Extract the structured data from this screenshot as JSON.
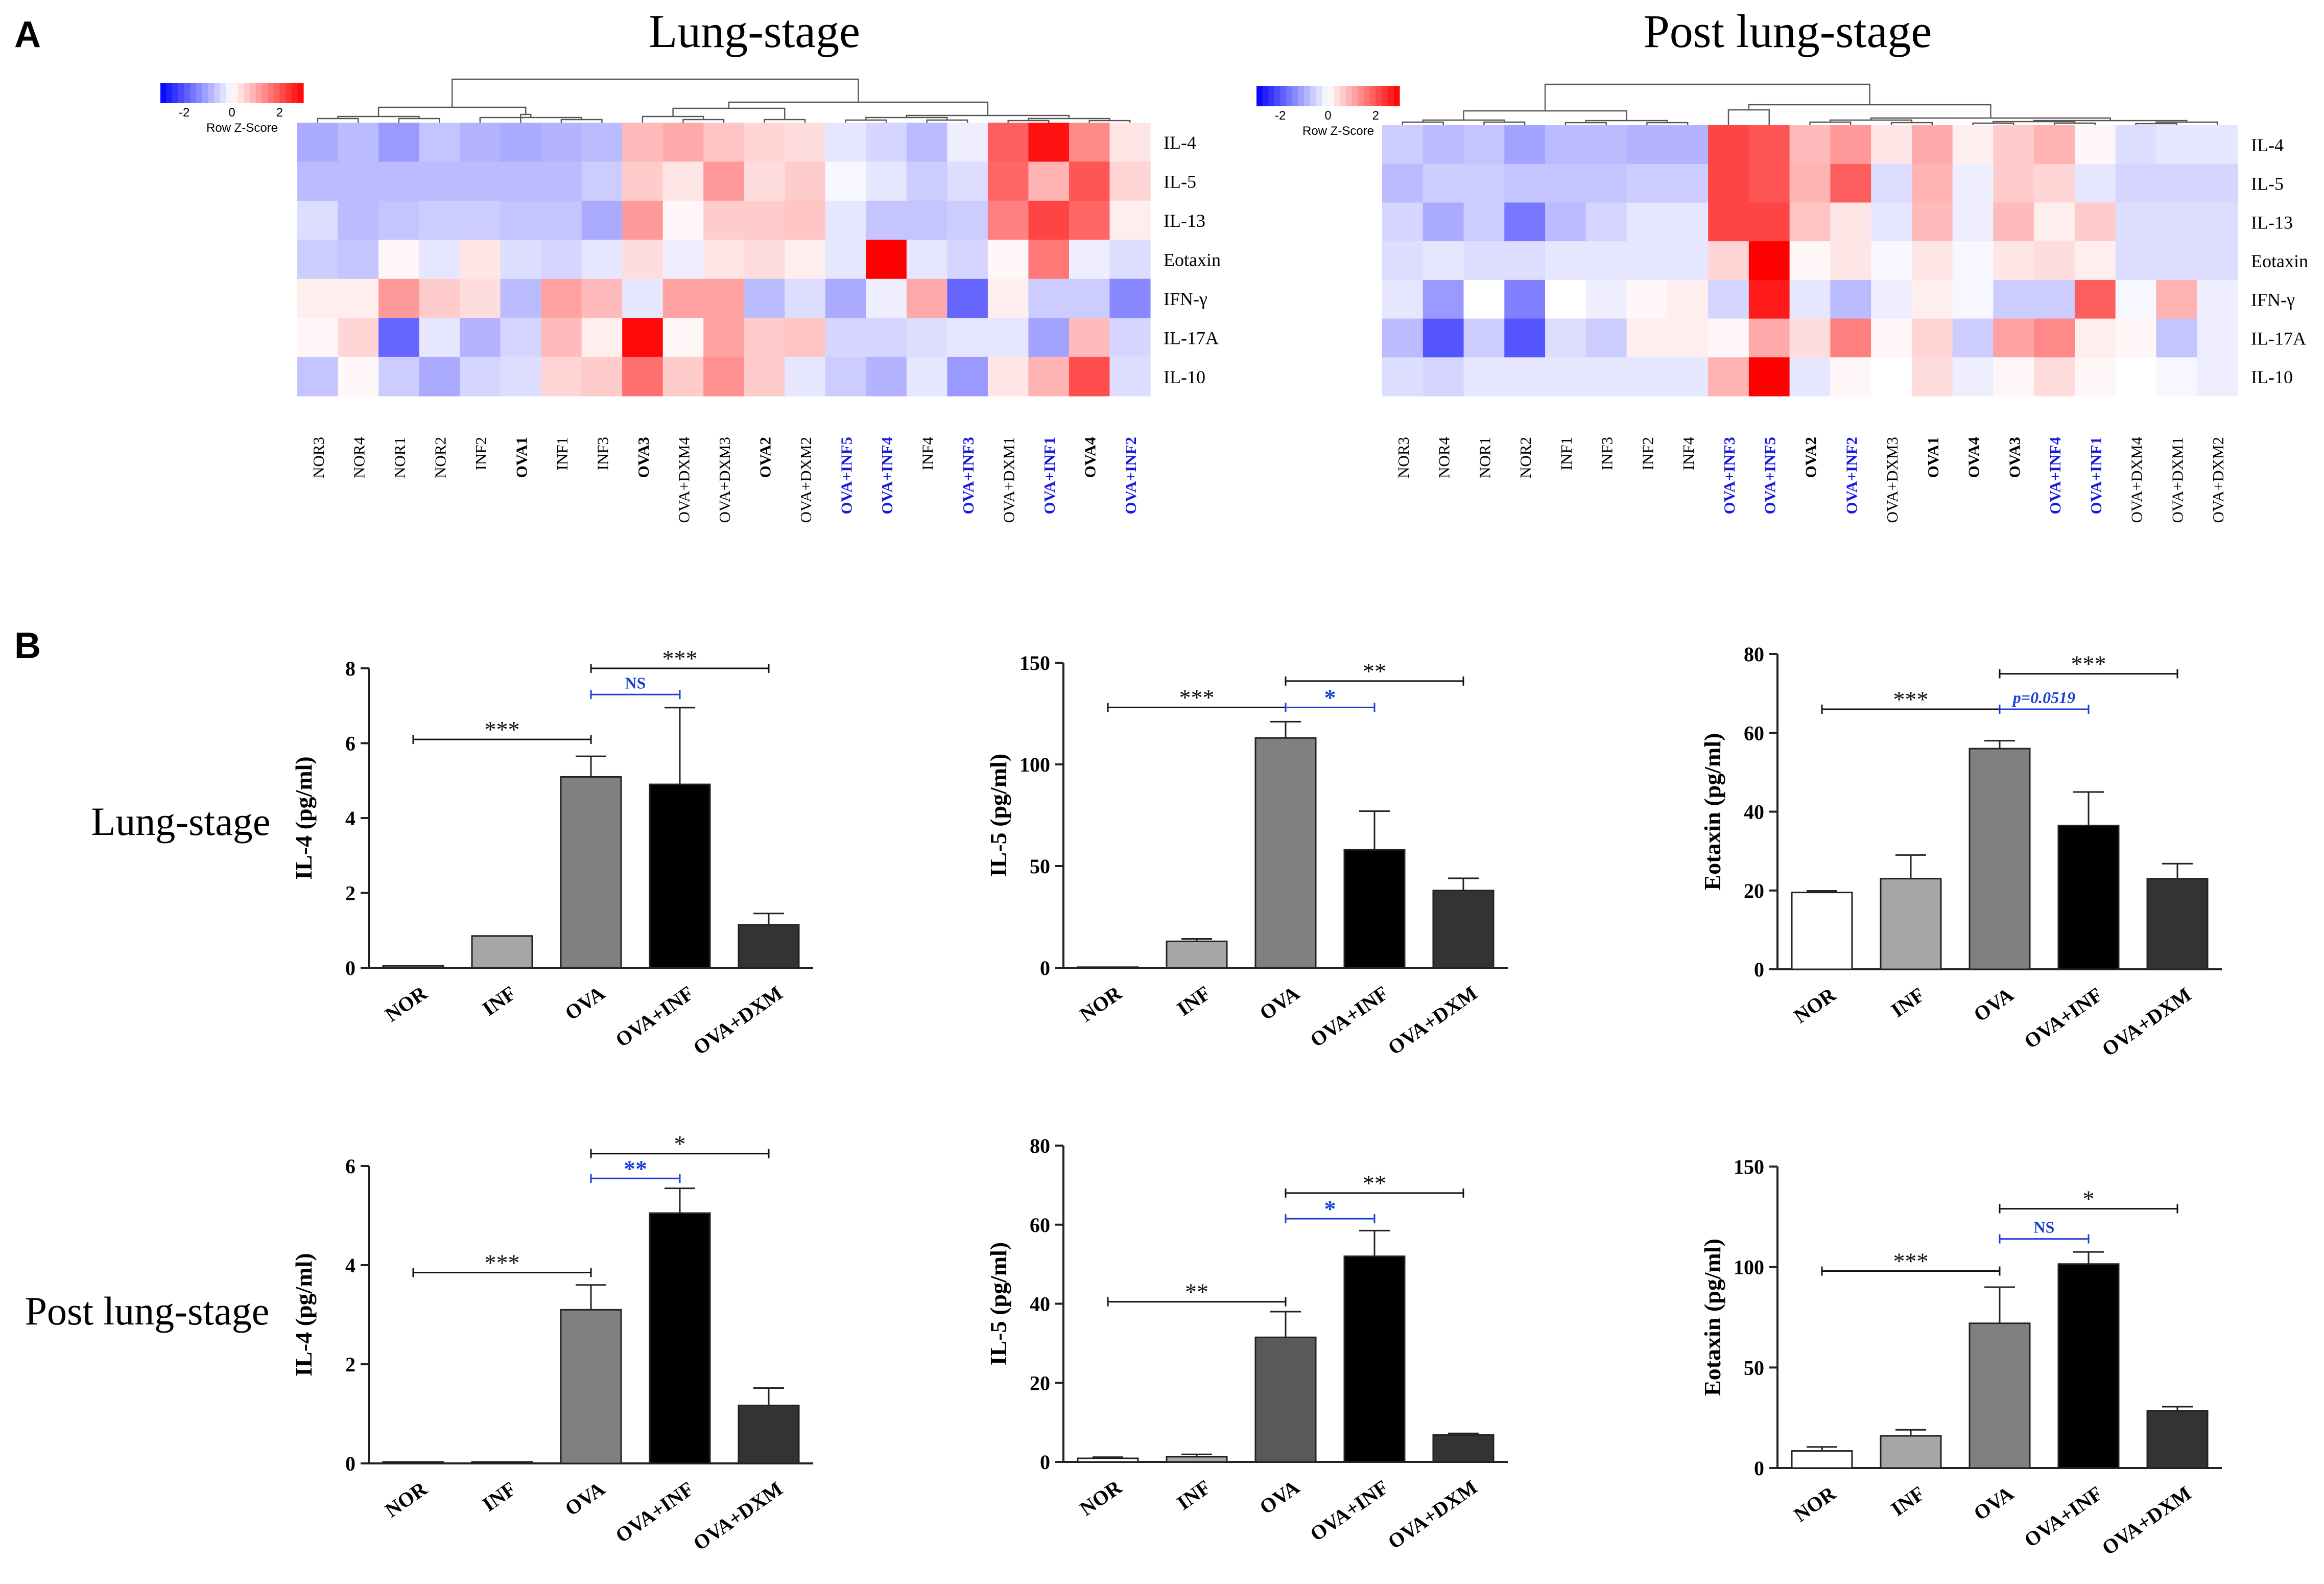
{
  "chart_data": [
    {
      "type": "heatmap",
      "panel": "A",
      "title": "Lung-stage",
      "colorbar": {
        "label": "Row Z-Score",
        "ticks": [
          "-2",
          "0",
          "2"
        ],
        "range": [
          -3,
          3
        ],
        "low_color": "#0000ff",
        "mid_color": "#ffffff",
        "high_color": "#ff0000"
      },
      "rows": [
        "IL-4",
        "IL-5",
        "IL-13",
        "Eotaxin",
        "IFN-γ",
        "IL-17A",
        "IL-10"
      ],
      "columns": [
        {
          "label": "NOR3",
          "bold": false,
          "color": "#000000"
        },
        {
          "label": "NOR4",
          "bold": false,
          "color": "#000000"
        },
        {
          "label": "NOR1",
          "bold": false,
          "color": "#000000"
        },
        {
          "label": "NOR2",
          "bold": false,
          "color": "#000000"
        },
        {
          "label": "INF2",
          "bold": false,
          "color": "#000000"
        },
        {
          "label": "OVA1",
          "bold": true,
          "color": "#000000"
        },
        {
          "label": "INF1",
          "bold": false,
          "color": "#000000"
        },
        {
          "label": "INF3",
          "bold": false,
          "color": "#000000"
        },
        {
          "label": "OVA3",
          "bold": true,
          "color": "#000000"
        },
        {
          "label": "OVA+DXM4",
          "bold": false,
          "color": "#000000"
        },
        {
          "label": "OVA+DXM3",
          "bold": false,
          "color": "#000000"
        },
        {
          "label": "OVA2",
          "bold": true,
          "color": "#000000"
        },
        {
          "label": "OVA+DXM2",
          "bold": false,
          "color": "#000000"
        },
        {
          "label": "OVA+INF5",
          "bold": true,
          "color": "#1a1adc"
        },
        {
          "label": "OVA+INF4",
          "bold": true,
          "color": "#1a1adc"
        },
        {
          "label": "INF4",
          "bold": false,
          "color": "#000000"
        },
        {
          "label": "OVA+INF3",
          "bold": true,
          "color": "#1a1adc"
        },
        {
          "label": "OVA+DXM1",
          "bold": false,
          "color": "#000000"
        },
        {
          "label": "OVA+INF1",
          "bold": true,
          "color": "#1a1adc"
        },
        {
          "label": "OVA4",
          "bold": true,
          "color": "#000000"
        },
        {
          "label": "OVA+INF2",
          "bold": true,
          "color": "#1a1adc"
        }
      ],
      "values": [
        [
          -1.0,
          -0.8,
          -1.2,
          -0.7,
          -0.9,
          -1.0,
          -0.9,
          -0.8,
          0.8,
          1.0,
          0.7,
          0.5,
          0.4,
          -0.3,
          -0.5,
          -0.8,
          -0.2,
          1.9,
          2.8,
          1.4,
          0.3
        ],
        [
          -0.8,
          -0.8,
          -0.8,
          -0.8,
          -0.8,
          -0.8,
          -0.8,
          -0.6,
          0.6,
          0.3,
          1.2,
          0.4,
          0.6,
          -0.1,
          -0.3,
          -0.6,
          -0.4,
          1.8,
          0.9,
          2.0,
          0.5
        ],
        [
          -0.4,
          -0.8,
          -0.7,
          -0.6,
          -0.6,
          -0.7,
          -0.7,
          -1.0,
          1.2,
          0.1,
          0.6,
          0.6,
          0.7,
          -0.3,
          -0.7,
          -0.7,
          -0.6,
          1.5,
          2.2,
          1.8,
          0.2
        ],
        [
          -0.6,
          -0.7,
          0.1,
          -0.3,
          0.3,
          -0.4,
          -0.5,
          -0.3,
          0.4,
          -0.2,
          0.3,
          0.4,
          0.2,
          -0.3,
          3.0,
          -0.3,
          -0.5,
          0.1,
          1.6,
          -0.2,
          -0.4
        ],
        [
          0.2,
          0.2,
          1.2,
          0.6,
          0.4,
          -0.8,
          1.1,
          0.8,
          -0.3,
          1.1,
          1.1,
          -0.8,
          -0.4,
          -1.0,
          -0.2,
          1.0,
          -1.8,
          0.2,
          -0.6,
          -0.6,
          -1.4
        ],
        [
          0.1,
          0.5,
          -1.8,
          -0.3,
          -0.9,
          -0.5,
          0.8,
          0.2,
          2.9,
          0.1,
          1.1,
          0.6,
          0.7,
          -0.5,
          -0.5,
          -0.4,
          -0.3,
          -0.3,
          -1.1,
          0.8,
          -0.5
        ],
        [
          -0.7,
          0.1,
          -0.6,
          -1.0,
          -0.5,
          -0.4,
          0.5,
          0.6,
          1.7,
          0.6,
          1.3,
          0.6,
          -0.3,
          -0.6,
          -0.9,
          -0.3,
          -1.2,
          0.3,
          0.9,
          2.1,
          -0.4
        ]
      ]
    },
    {
      "type": "heatmap",
      "panel": "A",
      "title": "Post lung-stage",
      "colorbar": {
        "label": "Row Z-Score",
        "ticks": [
          "-2",
          "0",
          "2"
        ],
        "range": [
          -3,
          3
        ],
        "low_color": "#0000ff",
        "mid_color": "#ffffff",
        "high_color": "#ff0000"
      },
      "rows": [
        "IL-4",
        "IL-5",
        "IL-13",
        "Eotaxin",
        "IFN-γ",
        "IL-17A",
        "IL-10"
      ],
      "columns": [
        {
          "label": "NOR3",
          "bold": false,
          "color": "#000000"
        },
        {
          "label": "NOR4",
          "bold": false,
          "color": "#000000"
        },
        {
          "label": "NOR1",
          "bold": false,
          "color": "#000000"
        },
        {
          "label": "NOR2",
          "bold": false,
          "color": "#000000"
        },
        {
          "label": "INF1",
          "bold": false,
          "color": "#000000"
        },
        {
          "label": "INF3",
          "bold": false,
          "color": "#000000"
        },
        {
          "label": "INF2",
          "bold": false,
          "color": "#000000"
        },
        {
          "label": "INF4",
          "bold": false,
          "color": "#000000"
        },
        {
          "label": "OVA+INF3",
          "bold": true,
          "color": "#1a1adc"
        },
        {
          "label": "OVA+INF5",
          "bold": true,
          "color": "#1a1adc"
        },
        {
          "label": "OVA2",
          "bold": true,
          "color": "#000000"
        },
        {
          "label": "OVA+INF2",
          "bold": true,
          "color": "#1a1adc"
        },
        {
          "label": "OVA+DXM3",
          "bold": false,
          "color": "#000000"
        },
        {
          "label": "OVA1",
          "bold": true,
          "color": "#000000"
        },
        {
          "label": "OVA4",
          "bold": true,
          "color": "#000000"
        },
        {
          "label": "OVA3",
          "bold": true,
          "color": "#000000"
        },
        {
          "label": "OVA+INF4",
          "bold": true,
          "color": "#1a1adc"
        },
        {
          "label": "OVA+INF1",
          "bold": true,
          "color": "#1a1adc"
        },
        {
          "label": "OVA+DXM4",
          "bold": false,
          "color": "#000000"
        },
        {
          "label": "OVA+DXM1",
          "bold": false,
          "color": "#000000"
        },
        {
          "label": "OVA+DXM2",
          "bold": false,
          "color": "#000000"
        }
      ],
      "values": [
        [
          -0.6,
          -0.8,
          -0.7,
          -1.1,
          -0.8,
          -0.8,
          -0.9,
          -0.9,
          2.2,
          2.0,
          0.8,
          1.2,
          0.3,
          1.0,
          0.2,
          0.6,
          0.9,
          0.1,
          -0.4,
          -0.3,
          -0.3
        ],
        [
          -0.8,
          -0.6,
          -0.6,
          -0.7,
          -0.7,
          -0.7,
          -0.6,
          -0.6,
          2.2,
          2.0,
          0.9,
          1.9,
          -0.4,
          0.9,
          -0.2,
          0.6,
          0.5,
          -0.3,
          -0.5,
          -0.5,
          -0.5
        ],
        [
          -0.5,
          -1.0,
          -0.6,
          -1.6,
          -0.8,
          -0.5,
          -0.3,
          -0.3,
          2.2,
          2.2,
          0.7,
          0.3,
          -0.3,
          0.8,
          -0.2,
          0.8,
          0.2,
          0.6,
          -0.4,
          -0.4,
          -0.4
        ],
        [
          -0.4,
          -0.3,
          -0.4,
          -0.4,
          -0.3,
          -0.3,
          -0.3,
          -0.3,
          0.5,
          3.0,
          0.1,
          0.3,
          -0.1,
          0.3,
          -0.1,
          0.3,
          0.4,
          0.2,
          -0.4,
          -0.4,
          -0.4
        ],
        [
          -0.3,
          -1.2,
          0.0,
          -1.5,
          0.0,
          -0.2,
          0.1,
          0.2,
          -0.5,
          2.7,
          -0.3,
          -0.8,
          -0.2,
          0.2,
          -0.1,
          -0.6,
          -0.6,
          1.9,
          -0.1,
          0.9,
          -0.2
        ],
        [
          -0.8,
          -2.0,
          -0.6,
          -2.0,
          -0.4,
          -0.6,
          0.2,
          0.2,
          0.1,
          1.0,
          0.4,
          1.5,
          0.1,
          0.5,
          -0.6,
          1.1,
          1.4,
          0.2,
          0.1,
          -0.7,
          -0.2
        ],
        [
          -0.4,
          -0.5,
          -0.3,
          -0.3,
          -0.3,
          -0.3,
          -0.3,
          -0.3,
          0.9,
          3.0,
          -0.3,
          0.1,
          0.0,
          0.4,
          -0.2,
          0.1,
          0.4,
          0.1,
          0.0,
          -0.1,
          -0.2
        ]
      ]
    },
    {
      "type": "bar",
      "panel": "B",
      "stage": "Lung-stage",
      "ylabel": "IL-4 (pg/ml)",
      "ylim": [
        0,
        8
      ],
      "yticks": [
        "0",
        "2",
        "4",
        "6",
        "8"
      ],
      "categories": [
        "NOR",
        "INF",
        "OVA",
        "OVA+INF",
        "OVA+DXM"
      ],
      "values": [
        0.05,
        0.85,
        5.1,
        4.9,
        1.15
      ],
      "errors": [
        0.0,
        0.0,
        0.55,
        2.05,
        0.3
      ],
      "fills": [
        "#ffffff",
        "#a6a6a6",
        "#808080",
        "#000000",
        "#333333"
      ],
      "comparisons": [
        {
          "label": "***",
          "color": "#111111",
          "bold": false,
          "from": 0,
          "to": 2,
          "y": 6.1
        },
        {
          "label": "NS",
          "color": "#1a3fd6",
          "bold": true,
          "from": 2,
          "to": 3,
          "y": 7.3
        },
        {
          "label": "***",
          "color": "#111111",
          "bold": false,
          "from": 2,
          "to": 4,
          "y": 8.0
        }
      ]
    },
    {
      "type": "bar",
      "panel": "B",
      "stage": "Lung-stage",
      "ylabel": "IL-5 (pg/ml)",
      "ylim": [
        0,
        150
      ],
      "yticks": [
        "0",
        "50",
        "100",
        "150"
      ],
      "categories": [
        "NOR",
        "INF",
        "OVA",
        "OVA+INF",
        "OVA+DXM"
      ],
      "values": [
        0.3,
        13,
        113,
        58,
        38
      ],
      "errors": [
        0.0,
        1.2,
        8.0,
        19.0,
        6.0
      ],
      "fills": [
        "#ffffff",
        "#a6a6a6",
        "#808080",
        "#000000",
        "#333333"
      ],
      "comparisons": [
        {
          "label": "***",
          "color": "#111111",
          "bold": false,
          "from": 0,
          "to": 2,
          "y": 128
        },
        {
          "label": "*",
          "color": "#1a3fd6",
          "bold": true,
          "from": 2,
          "to": 3,
          "y": 128
        },
        {
          "label": "**",
          "color": "#111111",
          "bold": false,
          "from": 2,
          "to": 4,
          "y": 141
        }
      ]
    },
    {
      "type": "bar",
      "panel": "B",
      "stage": "Lung-stage",
      "ylabel": "Eotaxin (pg/ml)",
      "ylim": [
        0,
        80
      ],
      "yticks": [
        "0",
        "20",
        "40",
        "60",
        "80"
      ],
      "categories": [
        "NOR",
        "INF",
        "OVA",
        "OVA+INF",
        "OVA+DXM"
      ],
      "values": [
        19.5,
        23,
        56,
        36.5,
        23
      ],
      "errors": [
        0.4,
        6.0,
        2.0,
        8.5,
        3.8
      ],
      "fills": [
        "#ffffff",
        "#a6a6a6",
        "#808080",
        "#000000",
        "#333333"
      ],
      "comparisons": [
        {
          "label": "***",
          "color": "#111111",
          "bold": false,
          "from": 0,
          "to": 2,
          "y": 66
        },
        {
          "label": "p=0.0519",
          "color": "#1a3fd6",
          "bold": true,
          "from": 2,
          "to": 3,
          "y": 66
        },
        {
          "label": "***",
          "color": "#111111",
          "bold": false,
          "from": 2,
          "to": 4,
          "y": 75
        }
      ]
    },
    {
      "type": "bar",
      "panel": "B",
      "stage": "Post lung-stage",
      "ylabel": "IL-4 (pg/ml)",
      "ylim": [
        0,
        6
      ],
      "yticks": [
        "0",
        "2",
        "4",
        "6"
      ],
      "categories": [
        "NOR",
        "INF",
        "OVA",
        "OVA+INF",
        "OVA+DXM"
      ],
      "values": [
        0.03,
        0.03,
        3.1,
        5.05,
        1.17
      ],
      "errors": [
        0.0,
        0.0,
        0.5,
        0.5,
        0.35
      ],
      "fills": [
        "#ffffff",
        "#a6a6a6",
        "#808080",
        "#000000",
        "#333333"
      ],
      "comparisons": [
        {
          "label": "***",
          "color": "#111111",
          "bold": false,
          "from": 0,
          "to": 2,
          "y": 3.85
        },
        {
          "label": "**",
          "color": "#1a3fd6",
          "bold": true,
          "from": 2,
          "to": 3,
          "y": 5.75
        },
        {
          "label": "*",
          "color": "#111111",
          "bold": false,
          "from": 2,
          "to": 4,
          "y": 6.25
        }
      ]
    },
    {
      "type": "bar",
      "panel": "B",
      "stage": "Post lung-stage",
      "ylabel": "IL-5 (pg/ml)",
      "ylim": [
        0,
        80
      ],
      "yticks": [
        "0",
        "20",
        "40",
        "60",
        "80"
      ],
      "categories": [
        "NOR",
        "INF",
        "OVA",
        "OVA+INF",
        "OVA+DXM"
      ],
      "values": [
        0.9,
        1.3,
        31.5,
        52,
        6.8
      ],
      "errors": [
        0.3,
        0.6,
        6.5,
        6.5,
        0.4
      ],
      "fills": [
        "#ffffff",
        "#a6a6a6",
        "#595959",
        "#000000",
        "#333333"
      ],
      "comparisons": [
        {
          "label": "**",
          "color": "#111111",
          "bold": false,
          "from": 0,
          "to": 2,
          "y": 40.5
        },
        {
          "label": "*",
          "color": "#1a3fd6",
          "bold": true,
          "from": 2,
          "to": 3,
          "y": 61.5
        },
        {
          "label": "**",
          "color": "#111111",
          "bold": false,
          "from": 2,
          "to": 4,
          "y": 68
        }
      ]
    },
    {
      "type": "bar",
      "panel": "B",
      "stage": "Post lung-stage",
      "ylabel": "Eotaxin (pg/ml)",
      "ylim": [
        0,
        150
      ],
      "yticks": [
        "0",
        "50",
        "100",
        "150"
      ],
      "categories": [
        "NOR",
        "INF",
        "OVA",
        "OVA+INF",
        "OVA+DXM"
      ],
      "values": [
        8.5,
        16,
        72,
        101.5,
        28.5
      ],
      "errors": [
        2.0,
        3.0,
        18.0,
        6.0,
        2.0
      ],
      "fills": [
        "#ffffff",
        "#a6a6a6",
        "#808080",
        "#000000",
        "#333333"
      ],
      "comparisons": [
        {
          "label": "***",
          "color": "#111111",
          "bold": false,
          "from": 0,
          "to": 2,
          "y": 98
        },
        {
          "label": "NS",
          "color": "#1a3fd6",
          "bold": true,
          "from": 2,
          "to": 3,
          "y": 114
        },
        {
          "label": "*",
          "color": "#111111",
          "bold": false,
          "from": 2,
          "to": 4,
          "y": 129
        }
      ]
    }
  ],
  "labels": {
    "panel_a": "A",
    "panel_b": "B",
    "lung_stage": "Lung-stage",
    "post_lung_stage": "Post lung-stage"
  }
}
